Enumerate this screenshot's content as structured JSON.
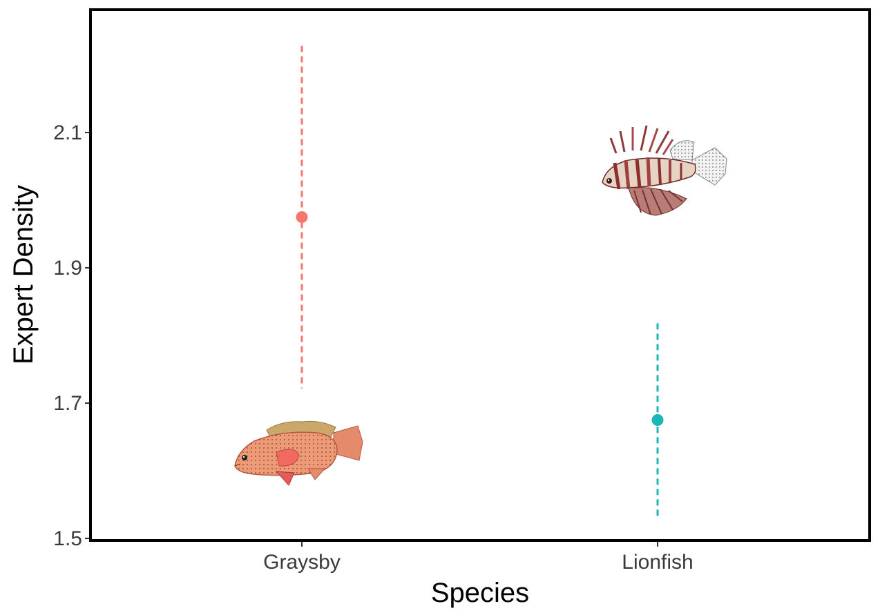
{
  "chart_data": {
    "type": "scatter",
    "subtype": "point-with-errorbar",
    "xlabel": "Species",
    "ylabel": "Expert Density",
    "categories": [
      "Graysby",
      "Lionfish"
    ],
    "series": [
      {
        "category": "Graysby",
        "value": 1.975,
        "lower": 1.722,
        "upper": 2.228,
        "color": "#F8766D",
        "image": "graysby-fish"
      },
      {
        "category": "Lionfish",
        "value": 1.675,
        "lower": 1.528,
        "upper": 1.818,
        "color": "#1DB5B5",
        "image": "lionfish"
      }
    ],
    "ylim": [
      1.5,
      2.25
    ],
    "yticks": [
      "1.5",
      "1.7",
      "1.9",
      "2.1"
    ],
    "ytick_values": [
      1.5,
      1.7,
      1.9,
      2.1
    ],
    "grid": false,
    "legend": "none",
    "errorbar_style": "dashed"
  }
}
